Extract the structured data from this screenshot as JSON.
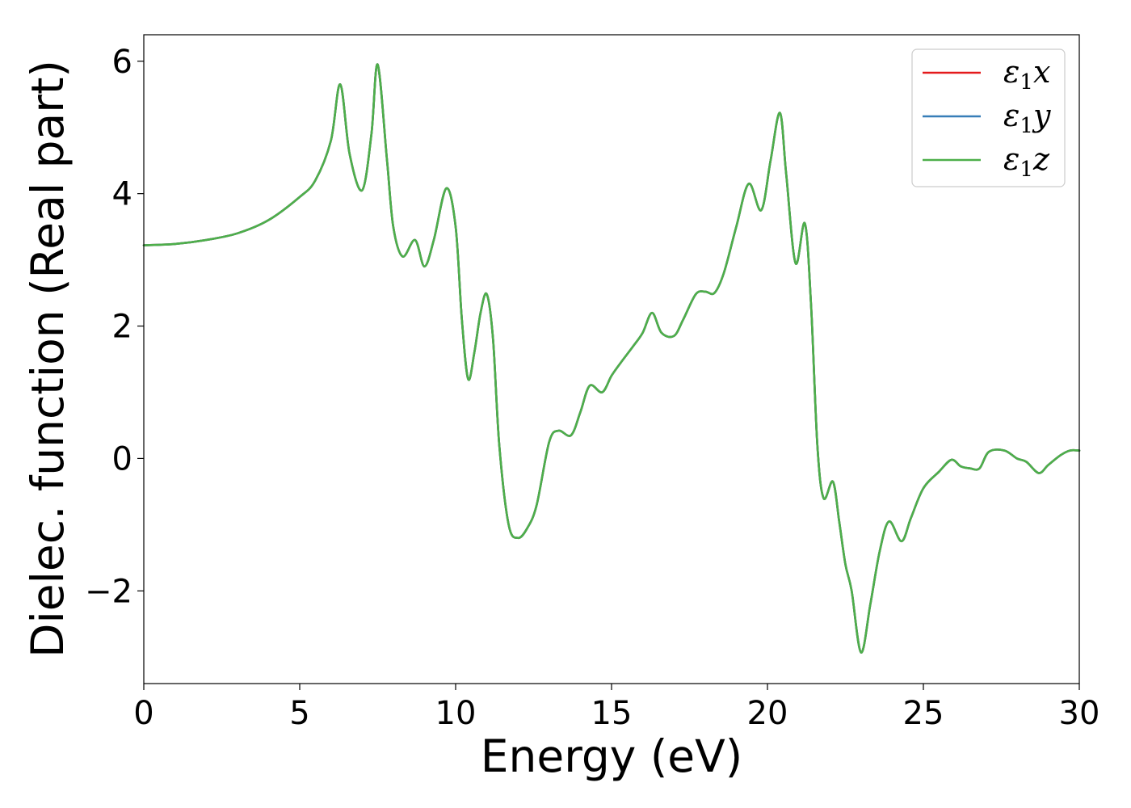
{
  "chart_data": {
    "type": "line",
    "xlabel": "Energy (eV)",
    "ylabel": "Dielec. function (Real part)",
    "xlim": [
      0,
      30
    ],
    "ylim": [
      -3.4,
      6.4
    ],
    "xticks": [
      0,
      5,
      10,
      15,
      20,
      25,
      30
    ],
    "xtick_labels": [
      "0",
      "5",
      "10",
      "15",
      "20",
      "25",
      "30"
    ],
    "yticks": [
      -2,
      0,
      2,
      4,
      6
    ],
    "ytick_labels": [
      "−2",
      "0",
      "2",
      "4",
      "6"
    ],
    "grid": false,
    "legend_position": "top-right",
    "x": [
      0,
      1,
      2,
      3,
      4,
      5,
      5.5,
      6.0,
      6.3,
      6.6,
      7.0,
      7.3,
      7.5,
      7.8,
      8.0,
      8.3,
      8.7,
      9.0,
      9.3,
      9.7,
      10.0,
      10.2,
      10.4,
      10.6,
      10.8,
      11.0,
      11.2,
      11.4,
      11.7,
      12.0,
      12.3,
      12.6,
      13.0,
      13.3,
      13.7,
      14.0,
      14.3,
      14.7,
      15.0,
      15.3,
      15.7,
      16.0,
      16.3,
      16.6,
      17.0,
      17.3,
      17.7,
      18.0,
      18.3,
      18.6,
      19.0,
      19.4,
      19.8,
      20.1,
      20.4,
      20.6,
      20.9,
      21.2,
      21.4,
      21.6,
      21.8,
      22.1,
      22.3,
      22.5,
      22.7,
      23.0,
      23.3,
      23.6,
      23.9,
      24.3,
      24.6,
      25.0,
      25.5,
      25.9,
      26.2,
      26.5,
      26.8,
      27.1,
      27.6,
      28.0,
      28.3,
      28.7,
      29.0,
      29.4,
      29.7,
      30.0
    ],
    "series": [
      {
        "name": "x",
        "color": "#e41a1c",
        "values": [
          3.22,
          3.24,
          3.3,
          3.4,
          3.6,
          3.95,
          4.2,
          4.8,
          5.65,
          4.6,
          4.05,
          4.9,
          5.95,
          4.5,
          3.5,
          3.05,
          3.3,
          2.9,
          3.3,
          4.08,
          3.5,
          2.1,
          1.2,
          1.6,
          2.2,
          2.48,
          1.8,
          0.2,
          -1.0,
          -1.2,
          -1.05,
          -0.7,
          0.25,
          0.42,
          0.35,
          0.7,
          1.1,
          1.0,
          1.25,
          1.45,
          1.7,
          1.9,
          2.2,
          1.9,
          1.85,
          2.1,
          2.48,
          2.52,
          2.5,
          2.8,
          3.5,
          4.15,
          3.75,
          4.5,
          5.22,
          4.3,
          2.95,
          3.55,
          2.3,
          0.2,
          -0.6,
          -0.35,
          -0.95,
          -1.6,
          -2.0,
          -2.93,
          -2.2,
          -1.4,
          -0.95,
          -1.25,
          -0.9,
          -0.45,
          -0.2,
          -0.02,
          -0.12,
          -0.15,
          -0.15,
          0.1,
          0.12,
          0.0,
          -0.05,
          -0.22,
          -0.1,
          0.05,
          0.12,
          0.12
        ]
      },
      {
        "name": "y",
        "color": "#377eb8",
        "values": [
          3.22,
          3.24,
          3.3,
          3.4,
          3.6,
          3.95,
          4.2,
          4.8,
          5.65,
          4.6,
          4.05,
          4.9,
          5.95,
          4.5,
          3.5,
          3.05,
          3.3,
          2.9,
          3.3,
          4.08,
          3.5,
          2.1,
          1.2,
          1.6,
          2.2,
          2.48,
          1.8,
          0.2,
          -1.0,
          -1.2,
          -1.05,
          -0.7,
          0.25,
          0.42,
          0.35,
          0.7,
          1.1,
          1.0,
          1.25,
          1.45,
          1.7,
          1.9,
          2.2,
          1.9,
          1.85,
          2.1,
          2.48,
          2.52,
          2.5,
          2.8,
          3.5,
          4.15,
          3.75,
          4.5,
          5.22,
          4.3,
          2.95,
          3.55,
          2.3,
          0.2,
          -0.6,
          -0.35,
          -0.95,
          -1.6,
          -2.0,
          -2.93,
          -2.2,
          -1.4,
          -0.95,
          -1.25,
          -0.9,
          -0.45,
          -0.2,
          -0.02,
          -0.12,
          -0.15,
          -0.15,
          0.1,
          0.12,
          0.0,
          -0.05,
          -0.22,
          -0.1,
          0.05,
          0.12,
          0.12
        ]
      },
      {
        "name": "z",
        "color": "#4daf4a",
        "values": [
          3.22,
          3.24,
          3.3,
          3.4,
          3.6,
          3.95,
          4.2,
          4.8,
          5.65,
          4.6,
          4.05,
          4.9,
          5.95,
          4.5,
          3.5,
          3.05,
          3.3,
          2.9,
          3.3,
          4.08,
          3.5,
          2.1,
          1.2,
          1.6,
          2.2,
          2.48,
          1.8,
          0.2,
          -1.0,
          -1.2,
          -1.05,
          -0.7,
          0.25,
          0.42,
          0.35,
          0.7,
          1.1,
          1.0,
          1.25,
          1.45,
          1.7,
          1.9,
          2.2,
          1.9,
          1.85,
          2.1,
          2.48,
          2.52,
          2.5,
          2.8,
          3.5,
          4.15,
          3.75,
          4.5,
          5.22,
          4.3,
          2.95,
          3.55,
          2.3,
          0.2,
          -0.6,
          -0.35,
          -0.95,
          -1.6,
          -2.0,
          -2.93,
          -2.2,
          -1.4,
          -0.95,
          -1.25,
          -0.9,
          -0.45,
          -0.2,
          -0.02,
          -0.12,
          -0.15,
          -0.15,
          0.1,
          0.12,
          0.0,
          -0.05,
          -0.22,
          -0.1,
          0.05,
          0.12,
          0.12
        ]
      }
    ],
    "legend": [
      {
        "symbol": "ε",
        "sub": "1",
        "suffix": "x",
        "color": "#e41a1c"
      },
      {
        "symbol": "ε",
        "sub": "1",
        "suffix": "y",
        "color": "#377eb8"
      },
      {
        "symbol": "ε",
        "sub": "1",
        "suffix": "z",
        "color": "#4daf4a"
      }
    ]
  }
}
